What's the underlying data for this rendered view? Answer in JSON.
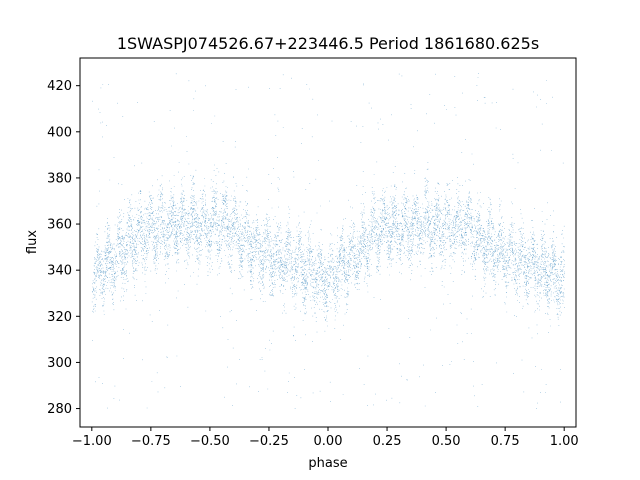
{
  "chart_data": {
    "type": "scatter",
    "title": "1SWASPJ074526.67+223446.5 Period 1861680.625s",
    "xlabel": "phase",
    "ylabel": "flux",
    "xlim": [
      -1.05,
      1.05
    ],
    "ylim": [
      272,
      432
    ],
    "xticks": [
      -1.0,
      -0.75,
      -0.5,
      -0.25,
      0.0,
      0.25,
      0.5,
      0.75,
      1.0
    ],
    "xtick_labels": [
      "−1.00",
      "−0.75",
      "−0.50",
      "−0.25",
      "0.00",
      "0.25",
      "0.50",
      "0.75",
      "1.00"
    ],
    "yticks": [
      280,
      300,
      320,
      340,
      360,
      380,
      400,
      420
    ],
    "ytick_labels": [
      "280",
      "300",
      "320",
      "340",
      "360",
      "380",
      "400",
      "420"
    ],
    "grid": false,
    "marker_color": "#1f77b4",
    "trend": {
      "x": [
        -1.0,
        -0.95,
        -0.9,
        -0.85,
        -0.8,
        -0.75,
        -0.7,
        -0.6,
        -0.5,
        -0.42,
        -0.35,
        -0.25,
        -0.15,
        -0.05,
        0.0,
        0.05,
        0.1,
        0.15,
        0.2,
        0.25,
        0.3,
        0.4,
        0.5,
        0.58,
        0.65,
        0.75,
        0.85,
        0.95,
        1.0
      ],
      "y": [
        335,
        342,
        345,
        350,
        356,
        358,
        358,
        360,
        358,
        360,
        352,
        347,
        343,
        338,
        335,
        342,
        345,
        350,
        356,
        358,
        358,
        360,
        358,
        360,
        352,
        347,
        343,
        338,
        335
      ]
    },
    "outlier_range": [
      280,
      426
    ]
  }
}
